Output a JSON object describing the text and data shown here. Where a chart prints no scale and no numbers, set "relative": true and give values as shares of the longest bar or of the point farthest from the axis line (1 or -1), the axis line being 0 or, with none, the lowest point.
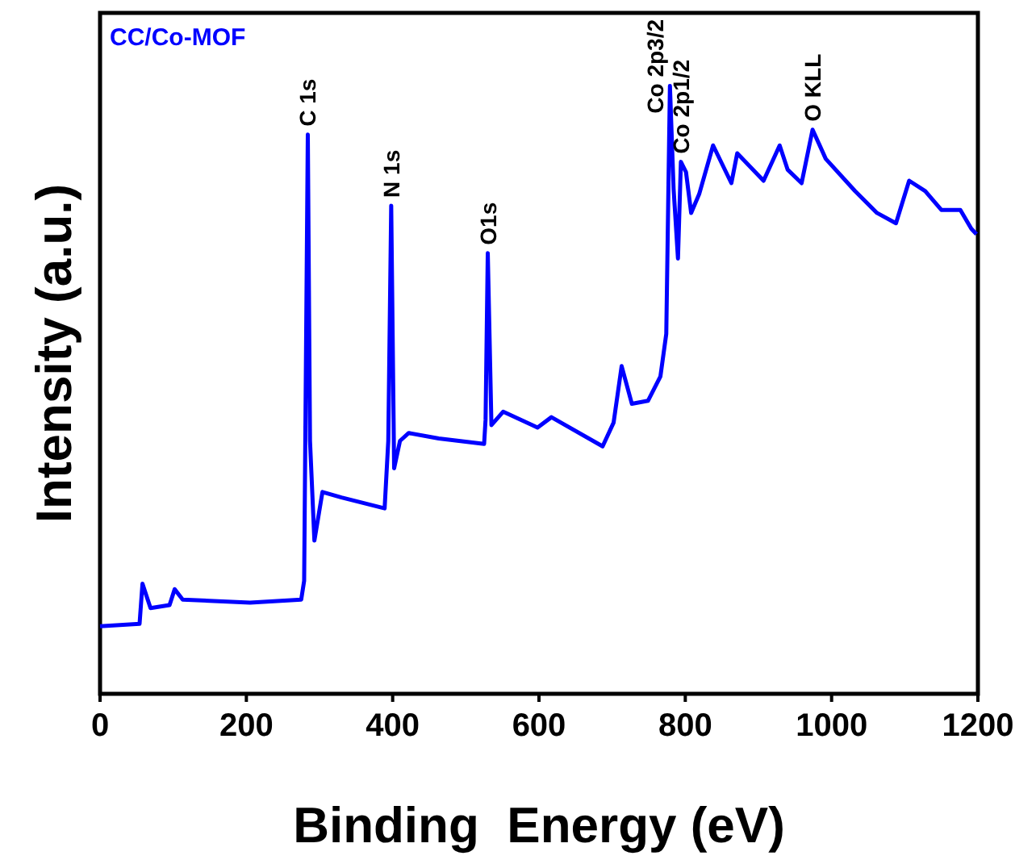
{
  "chart_data": {
    "type": "line",
    "xlabel": "Binding  Energy (eV)",
    "ylabel": "Intensity (a.u.)",
    "relative": true,
    "xlim": [
      0,
      1200
    ],
    "xticks": [
      0,
      200,
      400,
      600,
      800,
      1000,
      1200
    ],
    "tick_labels": "x",
    "legend": "top left",
    "grid": false,
    "series": [
      {
        "name": "CC/Co-MOF",
        "color": "#0000ff",
        "x": [
          0,
          54,
          58,
          69,
          95,
          102,
          113,
          205,
          275,
          279,
          284,
          287,
          293,
          304,
          330,
          389,
          394,
          398,
          402,
          410,
          422,
          463,
          525,
          527,
          530,
          535,
          551,
          591,
          598,
          617,
          687,
          702,
          713,
          727,
          749,
          766,
          774,
          779,
          784,
          790,
          794,
          801,
          808,
          819,
          838,
          863,
          871,
          907,
          929,
          940,
          959,
          974,
          992,
          1032,
          1062,
          1088,
          1106,
          1128,
          1150,
          1176,
          1191,
          1198
        ],
        "values": [
          0.111,
          0.115,
          0.181,
          0.141,
          0.146,
          0.172,
          0.155,
          0.15,
          0.155,
          0.186,
          0.92,
          0.416,
          0.252,
          0.332,
          0.323,
          0.305,
          0.416,
          0.803,
          0.371,
          0.416,
          0.429,
          0.42,
          0.411,
          0.451,
          0.725,
          0.442,
          0.464,
          0.442,
          0.438,
          0.455,
          0.407,
          0.446,
          0.539,
          0.477,
          0.482,
          0.522,
          0.592,
          1,
          0.831,
          0.716,
          0.875,
          0.858,
          0.791,
          0.822,
          0.902,
          0.84,
          0.889,
          0.844,
          0.902,
          0.862,
          0.84,
          0.928,
          0.88,
          0.827,
          0.791,
          0.774,
          0.844,
          0.827,
          0.796,
          0.796,
          0.765,
          0.756
        ]
      }
    ],
    "annotations": [
      {
        "text": "C 1s",
        "x": 284,
        "y": 0.92
      },
      {
        "text": "N 1s",
        "x": 398,
        "y": 0.803
      },
      {
        "text": "O1s",
        "x": 530,
        "y": 0.725
      },
      {
        "text": "Co 2p3/2",
        "x": 779,
        "y": 1
      },
      {
        "text": "Co 2p1/2",
        "x": 794,
        "y": 0.875
      },
      {
        "text": "O KLL",
        "x": 974,
        "y": 0.928
      }
    ]
  }
}
